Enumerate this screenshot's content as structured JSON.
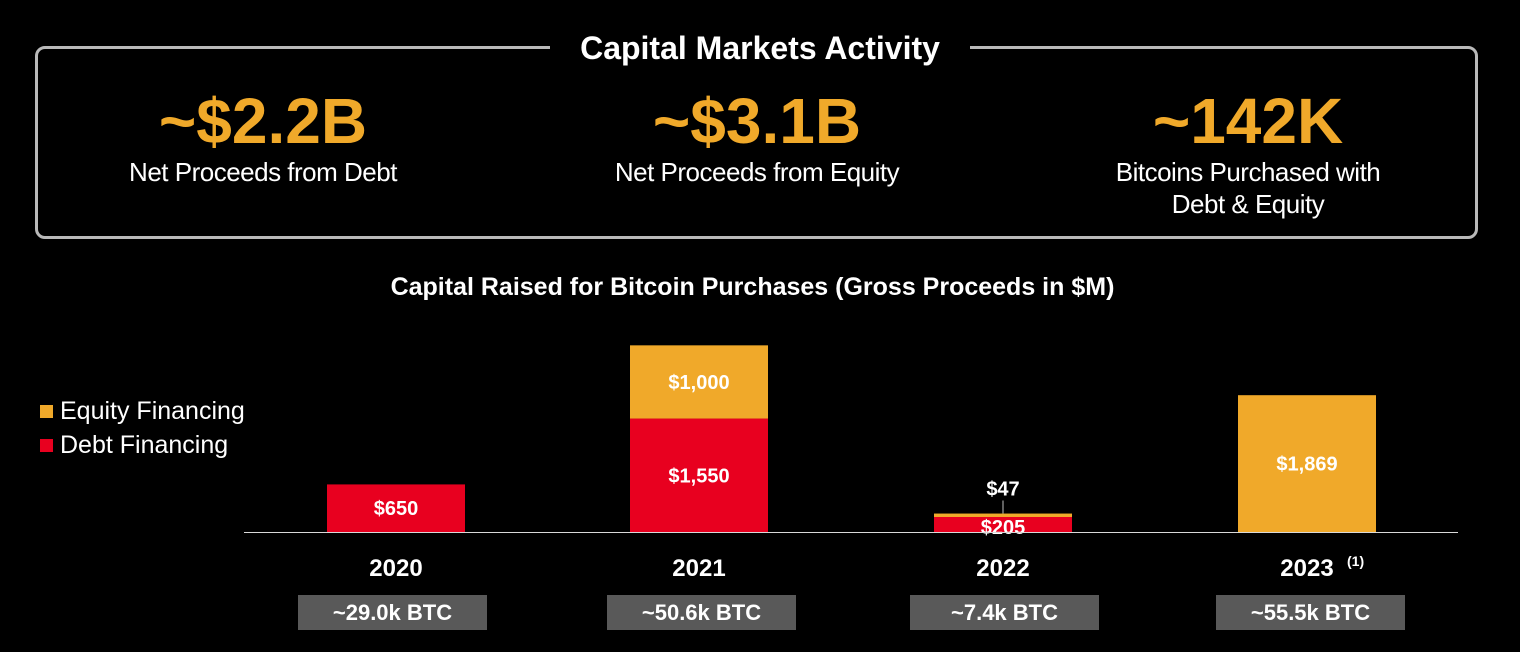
{
  "header": {
    "title": "Capital Markets Activity"
  },
  "stats": [
    {
      "value": "~$2.2B",
      "label": "Net Proceeds from Debt"
    },
    {
      "value": "~$3.1B",
      "label": "Net Proceeds from Equity"
    },
    {
      "value": "~142K",
      "label": "Bitcoins Purchased with Debt & Equity"
    }
  ],
  "colors": {
    "accent": "#f0a92a",
    "equity": "#f0a92a",
    "debt": "#e8001f",
    "btc_box": "#595959",
    "frame": "#b9b9b9"
  },
  "chart_data": {
    "type": "bar",
    "stacked": true,
    "title": "Capital Raised for Bitcoin Purchases (Gross Proceeds in $M)",
    "categories": [
      "2020",
      "2021",
      "2022",
      "2023"
    ],
    "category_notes": [
      "",
      "",
      "",
      "(1)"
    ],
    "series": [
      {
        "name": "Debt Financing",
        "values": [
          650,
          1550,
          205,
          0
        ],
        "labels": [
          "$650",
          "$1,550",
          "$205",
          ""
        ]
      },
      {
        "name": "Equity Financing",
        "values": [
          0,
          1000,
          47,
          1869
        ],
        "labels": [
          "",
          "$1,000",
          "$47",
          "$1,869"
        ]
      }
    ],
    "btc_purchased": [
      "~29.0k BTC",
      "~50.6k BTC",
      "~7.4k BTC",
      "~55.5k BTC"
    ],
    "legend_position": "left",
    "grid": false
  }
}
